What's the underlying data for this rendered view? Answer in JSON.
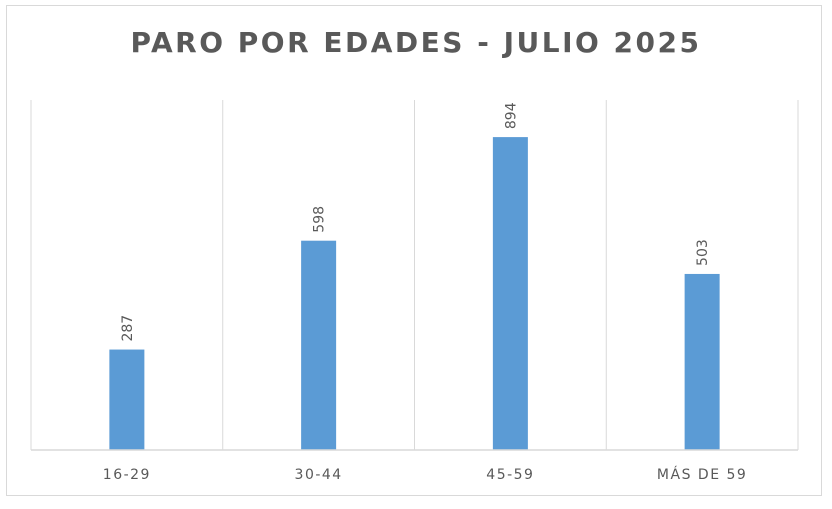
{
  "chart_data": {
    "type": "bar",
    "title": "PARO POR EDADES - JULIO 2025",
    "xlabel": "",
    "ylabel": "",
    "categories": [
      "16-29",
      "30-44",
      "45-59",
      "MÁS DE 59"
    ],
    "values": [
      287,
      598,
      894,
      503
    ],
    "ylim": [
      0,
      1000
    ],
    "grid": "vertical-separators",
    "legend": "none",
    "data_labels": true,
    "colors": {
      "bar": "#5b9bd5",
      "grid": "#d9d9d9",
      "axis": "#d9d9d9",
      "text": "#595959"
    }
  }
}
